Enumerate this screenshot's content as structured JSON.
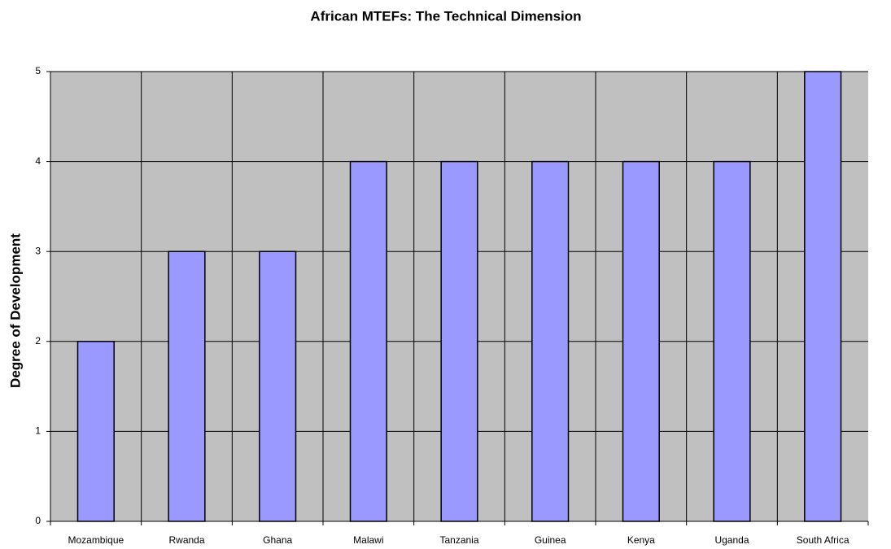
{
  "chart_data": {
    "type": "bar",
    "title": "African MTEFs:  The Technical Dimension",
    "y_label": "Degree of Development",
    "categories": [
      "Mozambique",
      "Rwanda",
      "Ghana",
      "Malawi",
      "Tanzania",
      "Guinea",
      "Kenya",
      "Uganda",
      "South Africa"
    ],
    "values": [
      2,
      3,
      3,
      4,
      4,
      4,
      4,
      4,
      5
    ],
    "color": "#9999ff",
    "plot_background": "#c0c0c0",
    "ylim": [
      0,
      5
    ],
    "yticks": [
      0,
      1,
      2,
      3,
      4,
      5
    ],
    "grid": true
  }
}
